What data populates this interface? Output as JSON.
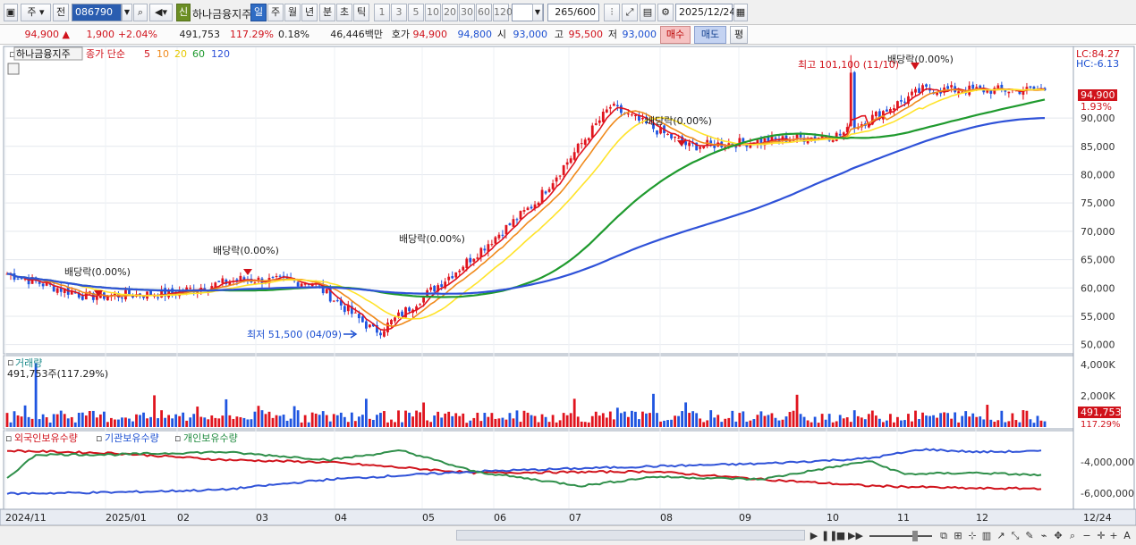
{
  "toolbar": {
    "period_label": "주",
    "type_label": "전",
    "code_value": "086790",
    "name_badge": "신",
    "stock_name": "하나금융지주",
    "periods": [
      "일",
      "주",
      "월",
      "년",
      "분",
      "초",
      "틱"
    ],
    "numbers": [
      "1",
      "3",
      "5",
      "10",
      "20",
      "30",
      "60",
      "120"
    ],
    "count_value": "265",
    "count_total": "/600",
    "date_value": "2025/12/24"
  },
  "info": {
    "price": "94,900",
    "change": "1,900",
    "change_pct": "+2.04%",
    "volume": "491,753",
    "volume_ratio": "117.29%",
    "turnover": "0.18%",
    "amount": "46,446백만",
    "quote_label": "호가",
    "ask": "94,900",
    "bid": "94,800",
    "open_label": "시",
    "open": "93,000",
    "high_label": "고",
    "high": "95,500",
    "low_label": "저",
    "low": "93,000",
    "buy_label": "매수",
    "sell_label": "매도",
    "eval_label": "평"
  },
  "price_panel": {
    "title": "하나금융지주",
    "ma_label": "종가 단순",
    "ma_periods": [
      "5",
      "10",
      "20",
      "60",
      "120"
    ],
    "lc_label": "LC:84.27",
    "hc_label": "HC:-6.13",
    "last_price": "94,900",
    "last_pct": "1.93%",
    "annotations": {
      "div1": "배당락(0.00%)",
      "div2": "배당락(0.00%)",
      "div3": "배당락(0.00%)",
      "div4": "배당락(0.00%)",
      "div5": "배당락(0.00%)",
      "high": "최고 101,100 (11/10)",
      "low": "최저 51,500 (04/09)"
    },
    "axis_ticks": [
      "50,000",
      "55,000",
      "60,000",
      "65,000",
      "70,000",
      "75,000",
      "80,000",
      "85,000",
      "90,000"
    ]
  },
  "volume_panel": {
    "title": "거래량",
    "readout": "491,753주(117.29%)",
    "axis_ticks": [
      "2,000K",
      "4,000K"
    ],
    "last_value": "491,753",
    "last_pct": "117.29%"
  },
  "holder_panel": {
    "series": [
      "외국인보유수량",
      "기관보유수량",
      "개인보유수량"
    ],
    "axis_ticks": [
      "-4,000,000",
      "-6,000,000"
    ]
  },
  "x_axis": {
    "labels": [
      "2024/11",
      "2025/01",
      "02",
      "03",
      "04",
      "05",
      "06",
      "07",
      "08",
      "09",
      "10",
      "11",
      "12"
    ],
    "right_label": "12/24"
  },
  "colors": {
    "up": "#e0141e",
    "down": "#1f55e0",
    "ma5": "#e0141e",
    "ma10": "#f08a1c",
    "ma20": "#ffe32a",
    "ma60": "#1f9a2e",
    "ma120": "#2f52d8"
  },
  "chart_data": {
    "type": "candlestick",
    "title": "하나금융지주",
    "y_range": [
      49000,
      102000
    ],
    "volume_range": [
      0,
      4800000
    ],
    "date_range": [
      "2024/11",
      "2025/12/24"
    ],
    "close_keypoints": [
      {
        "date": "2024/11",
        "close": 62500
      },
      {
        "date": "2024/12",
        "close": 58500
      },
      {
        "date": "2025/01",
        "close": 59000
      },
      {
        "date": "2025/02",
        "close": 61500
      },
      {
        "date": "2025/03",
        "close": 61000
      },
      {
        "date": "2025/04/09",
        "close": 52000
      },
      {
        "date": "2025/05",
        "close": 63000
      },
      {
        "date": "2025/06",
        "close": 75000
      },
      {
        "date": "2025/07",
        "close": 92000
      },
      {
        "date": "2025/08",
        "close": 85000
      },
      {
        "date": "2025/09",
        "close": 86000
      },
      {
        "date": "2025/10",
        "close": 87000
      },
      {
        "date": "2025/11",
        "close": 95000
      },
      {
        "date": "2025/12/24",
        "close": 94900
      }
    ],
    "high": {
      "date": "11/10",
      "value": 101100
    },
    "low": {
      "date": "04/09",
      "value": 51500
    },
    "moving_averages": [
      "5",
      "10",
      "20",
      "60",
      "120"
    ],
    "ownership_ticks": [
      "-4,000,000",
      "-6,000,000"
    ]
  }
}
